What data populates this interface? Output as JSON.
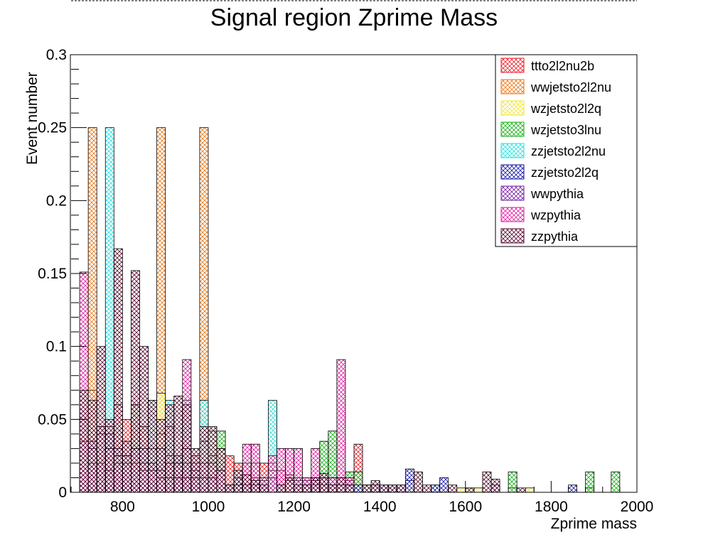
{
  "chart_data": {
    "type": "bar",
    "title": "Signal region Zprime Mass",
    "xlabel": "Zprime mass",
    "ylabel": "Event number",
    "xlim": [
      680,
      2000
    ],
    "ylim": [
      0,
      0.3
    ],
    "bin_width": 20,
    "xticks": [
      "800",
      "1000",
      "1200",
      "1400",
      "1600",
      "1800",
      "2000"
    ],
    "yticks": [
      "0",
      "0.05",
      "0.1",
      "0.15",
      "0.2",
      "0.25",
      "0.3"
    ],
    "legend_position": "top-right",
    "series": [
      {
        "name": "ttto2l2nu2b",
        "color": "#e8212b",
        "points": [
          [
            700,
            0.05
          ],
          [
            720,
            0.07
          ],
          [
            740,
            0.045
          ],
          [
            760,
            0.03
          ],
          [
            780,
            0.06
          ],
          [
            800,
            0.05
          ],
          [
            820,
            0.06
          ],
          [
            840,
            0.045
          ],
          [
            860,
            0.03
          ],
          [
            880,
            0.04
          ],
          [
            900,
            0.045
          ],
          [
            920,
            0.02
          ],
          [
            940,
            0.03
          ],
          [
            960,
            0.025
          ],
          [
            980,
            0.035
          ],
          [
            1000,
            0.025
          ],
          [
            1020,
            0.03
          ],
          [
            1040,
            0.025
          ],
          [
            1060,
            0.02
          ],
          [
            1080,
            0.02
          ],
          [
            1100,
            0.01
          ],
          [
            1120,
            0.02
          ],
          [
            1140,
            0.02
          ],
          [
            1160,
            0.015
          ],
          [
            1180,
            0.008
          ],
          [
            1200,
            0.008
          ],
          [
            1220,
            0.005
          ],
          [
            1240,
            0.008
          ],
          [
            1260,
            0.01
          ],
          [
            1280,
            0.005
          ],
          [
            1300,
            0.01
          ],
          [
            1320,
            0.005
          ],
          [
            1340,
            0.033
          ],
          [
            1360,
            0.005
          ]
        ]
      },
      {
        "name": "wwjetsto2l2nu",
        "color": "#e87a1b",
        "points": [
          [
            720,
            0.25
          ],
          [
            760,
            0.045
          ],
          [
            880,
            0.25
          ],
          [
            980,
            0.25
          ],
          [
            1180,
            0.012
          ]
        ]
      },
      {
        "name": "wzjetsto2l2q",
        "color": "#f2e63d",
        "points": [
          [
            880,
            0.068
          ],
          [
            900,
            0.025
          ],
          [
            940,
            0.03
          ],
          [
            1060,
            0.005
          ],
          [
            1240,
            0.005
          ],
          [
            1320,
            0.005
          ],
          [
            1380,
            0.005
          ],
          [
            1460,
            0.008
          ],
          [
            1580,
            0.003
          ],
          [
            1600,
            0.003
          ],
          [
            1620,
            0.003
          ],
          [
            1700,
            0.003
          ],
          [
            1740,
            0.003
          ],
          [
            1880,
            0.003
          ]
        ]
      },
      {
        "name": "wzjetsto3lnu",
        "color": "#19b319",
        "points": [
          [
            780,
            0.025
          ],
          [
            820,
            0.06
          ],
          [
            1000,
            0.042
          ],
          [
            1020,
            0.042
          ],
          [
            1100,
            0.02
          ],
          [
            1140,
            0.015
          ],
          [
            1260,
            0.035
          ],
          [
            1280,
            0.042
          ],
          [
            1320,
            0.014
          ],
          [
            1340,
            0.014
          ],
          [
            1360,
            0.005
          ],
          [
            1520,
            0.005
          ],
          [
            1700,
            0.014
          ],
          [
            1880,
            0.014
          ],
          [
            1940,
            0.014
          ]
        ]
      },
      {
        "name": "zzjetsto2l2nu",
        "color": "#2ee0e0",
        "points": [
          [
            760,
            0.25
          ],
          [
            860,
            0.063
          ],
          [
            900,
            0.063
          ],
          [
            940,
            0.063
          ],
          [
            980,
            0.063
          ],
          [
            1140,
            0.063
          ],
          [
            1240,
            0.01
          ],
          [
            1300,
            0.005
          ],
          [
            1320,
            0.005
          ]
        ]
      },
      {
        "name": "zzjetsto2l2q",
        "color": "#1a1aa6",
        "points": [
          [
            720,
            0.035
          ],
          [
            740,
            0.045
          ],
          [
            760,
            0.04
          ],
          [
            780,
            0.03
          ],
          [
            800,
            0.02
          ],
          [
            820,
            0.03
          ],
          [
            840,
            0.03
          ],
          [
            860,
            0.02
          ],
          [
            880,
            0.03
          ],
          [
            900,
            0.02
          ],
          [
            920,
            0.025
          ],
          [
            940,
            0.02
          ],
          [
            960,
            0.015
          ],
          [
            980,
            0.01
          ],
          [
            1000,
            0.01
          ],
          [
            1020,
            0.015
          ],
          [
            1040,
            0.005
          ],
          [
            1060,
            0.01
          ],
          [
            1080,
            0.005
          ],
          [
            1100,
            0.005
          ],
          [
            1120,
            0.008
          ],
          [
            1140,
            0.01
          ],
          [
            1160,
            0.005
          ],
          [
            1200,
            0.01
          ],
          [
            1220,
            0.008
          ],
          [
            1240,
            0.008
          ],
          [
            1260,
            0.005
          ],
          [
            1280,
            0.01
          ],
          [
            1300,
            0.005
          ],
          [
            1320,
            0.008
          ],
          [
            1340,
            0.005
          ],
          [
            1380,
            0.005
          ],
          [
            1400,
            0.005
          ],
          [
            1420,
            0.005
          ],
          [
            1440,
            0.005
          ],
          [
            1460,
            0.016
          ],
          [
            1520,
            0.005
          ],
          [
            1540,
            0.01
          ],
          [
            1660,
            0.005
          ],
          [
            1840,
            0.005
          ]
        ]
      },
      {
        "name": "wwpythia",
        "color": "#7a1fa6",
        "points": [
          [
            700,
            0.035
          ],
          [
            720,
            0.02
          ],
          [
            740,
            0.02
          ],
          [
            760,
            0.015
          ],
          [
            780,
            0.02
          ],
          [
            800,
            0.025
          ],
          [
            820,
            0.02
          ],
          [
            840,
            0.015
          ],
          [
            860,
            0.015
          ],
          [
            880,
            0.01
          ],
          [
            900,
            0.01
          ],
          [
            920,
            0.01
          ],
          [
            940,
            0.01
          ],
          [
            960,
            0.01
          ]
        ]
      },
      {
        "name": "wzpythia",
        "color": "#e020a0",
        "points": [
          [
            700,
            0.151
          ],
          [
            720,
            0.03
          ],
          [
            740,
            0.04
          ],
          [
            760,
            0.03
          ],
          [
            780,
            0.025
          ],
          [
            800,
            0.025
          ],
          [
            820,
            0.03
          ],
          [
            840,
            0.02
          ],
          [
            860,
            0.02
          ],
          [
            880,
            0.015
          ],
          [
            900,
            0.02
          ],
          [
            920,
            0.02
          ],
          [
            940,
            0.091
          ],
          [
            960,
            0.02
          ],
          [
            980,
            0.02
          ],
          [
            1000,
            0.02
          ],
          [
            1020,
            0.015
          ],
          [
            1080,
            0.033
          ],
          [
            1100,
            0.033
          ],
          [
            1120,
            0.01
          ],
          [
            1140,
            0.025
          ],
          [
            1160,
            0.03
          ],
          [
            1180,
            0.03
          ],
          [
            1200,
            0.03
          ],
          [
            1220,
            0.01
          ],
          [
            1240,
            0.03
          ],
          [
            1260,
            0.01
          ],
          [
            1280,
            0.01
          ],
          [
            1300,
            0.091
          ],
          [
            1320,
            0.01
          ]
        ]
      },
      {
        "name": "zzpythia",
        "color": "#5a0a30",
        "points": [
          [
            700,
            0.07
          ],
          [
            720,
            0.063
          ],
          [
            740,
            0.1
          ],
          [
            760,
            0.05
          ],
          [
            780,
            0.167
          ],
          [
            800,
            0.035
          ],
          [
            820,
            0.152
          ],
          [
            840,
            0.1
          ],
          [
            860,
            0.063
          ],
          [
            880,
            0.05
          ],
          [
            900,
            0.06
          ],
          [
            920,
            0.066
          ],
          [
            940,
            0.06
          ],
          [
            960,
            0.03
          ],
          [
            980,
            0.045
          ],
          [
            1000,
            0.045
          ],
          [
            1020,
            0.03
          ],
          [
            1040,
            0.005
          ],
          [
            1060,
            0.015
          ],
          [
            1080,
            0.012
          ],
          [
            1100,
            0.008
          ],
          [
            1120,
            0.005
          ],
          [
            1160,
            0.005
          ],
          [
            1180,
            0.01
          ],
          [
            1200,
            0.005
          ],
          [
            1220,
            0.005
          ],
          [
            1240,
            0.01
          ],
          [
            1260,
            0.013
          ],
          [
            1280,
            0.005
          ],
          [
            1300,
            0.01
          ],
          [
            1320,
            0.005
          ],
          [
            1360,
            0.005
          ],
          [
            1380,
            0.008
          ],
          [
            1400,
            0.005
          ],
          [
            1420,
            0.005
          ],
          [
            1440,
            0.005
          ],
          [
            1480,
            0.014
          ],
          [
            1500,
            0.005
          ],
          [
            1560,
            0.005
          ],
          [
            1600,
            0.003
          ],
          [
            1640,
            0.014
          ],
          [
            1660,
            0.009
          ],
          [
            1720,
            0.003
          ]
        ]
      }
    ]
  }
}
